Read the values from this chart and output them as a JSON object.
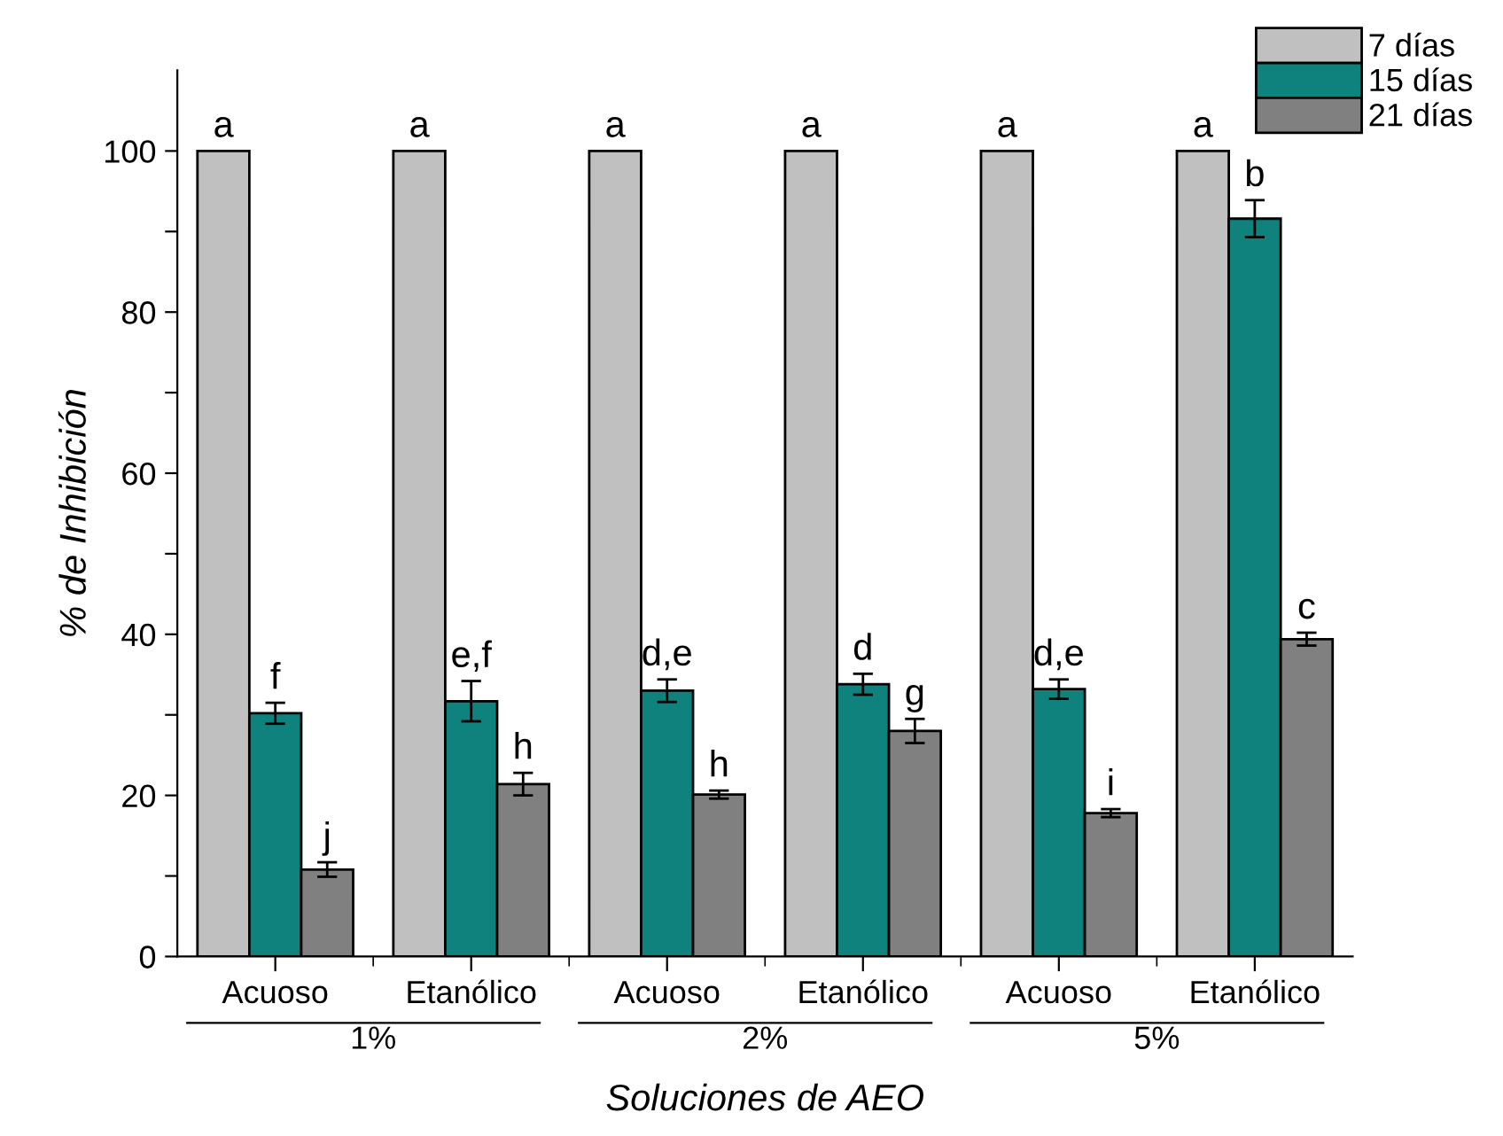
{
  "chart_data": {
    "type": "bar",
    "xlabel": "Soluciones de AEO",
    "ylabel": "% de Inhibición",
    "categories": [
      "Acuoso",
      "Etanólico",
      "Acuoso",
      "Etanólico",
      "Acuoso",
      "Etanólico"
    ],
    "series": [
      {
        "name": "7 días",
        "color": "#c0c0c0",
        "values": [
          100,
          100,
          100,
          100,
          100,
          100
        ],
        "value_labels": [
          "a",
          "a",
          "a",
          "a",
          "a",
          "a"
        ]
      },
      {
        "name": "15 días",
        "color": "#0f827d",
        "values": [
          30.2,
          31.7,
          33.0,
          33.8,
          33.2,
          91.6
        ],
        "errors": [
          1.3,
          2.5,
          1.4,
          1.3,
          1.2,
          2.3
        ],
        "value_labels": [
          "f",
          "e,f",
          "d,e",
          "d",
          "d,e",
          "b"
        ]
      },
      {
        "name": "21 días",
        "color": "#808080",
        "values": [
          10.8,
          21.4,
          20.1,
          28.0,
          17.8,
          39.4
        ],
        "errors": [
          0.9,
          1.4,
          0.5,
          1.5,
          0.5,
          0.8
        ],
        "value_labels": [
          "j",
          "h",
          "h",
          "g",
          "i",
          "c"
        ]
      }
    ],
    "annotations": [
      "1%",
      "2%",
      "5%"
    ],
    "ylim": [
      0,
      110
    ],
    "yticks": [
      0,
      {
        "value": 10,
        "label": null
      },
      20,
      {
        "value": 30,
        "label": null
      },
      40,
      {
        "value": 50,
        "label": null
      },
      60,
      {
        "value": 70,
        "label": null
      },
      80,
      {
        "value": 90,
        "label": null
      },
      100
    ],
    "grid": false,
    "legend": "top right"
  }
}
